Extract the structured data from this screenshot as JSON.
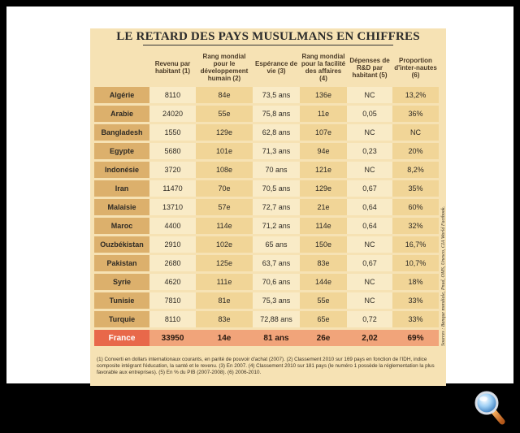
{
  "title": "LE RETARD DES PAYS MUSULMANS EN CHIFFRES",
  "columns": [
    "",
    "Revenu par habitant (1)",
    "Rang mondial pour le développement humain (2)",
    "Espérance de vie (3)",
    "Rang mondial pour la facilité des affaires (4)",
    "Dépenses de R&D par habitant (5)",
    "Proportion d'inter-nautes (6)"
  ],
  "rows": [
    [
      "Algérie",
      "8110",
      "84e",
      "73,5 ans",
      "136e",
      "NC",
      "13,2%"
    ],
    [
      "Arabie",
      "24020",
      "55e",
      "75,8 ans",
      "11e",
      "0,05",
      "36%"
    ],
    [
      "Bangladesh",
      "1550",
      "129e",
      "62,8 ans",
      "107e",
      "NC",
      "NC"
    ],
    [
      "Egypte",
      "5680",
      "101e",
      "71,3 ans",
      "94e",
      "0,23",
      "20%"
    ],
    [
      "Indonésie",
      "3720",
      "108e",
      "70 ans",
      "121e",
      "NC",
      "8,2%"
    ],
    [
      "Iran",
      "11470",
      "70e",
      "70,5 ans",
      "129e",
      "0,67",
      "35%"
    ],
    [
      "Malaisie",
      "13710",
      "57e",
      "72,7 ans",
      "21e",
      "0,64",
      "60%"
    ],
    [
      "Maroc",
      "4400",
      "114e",
      "71,2 ans",
      "114e",
      "0,64",
      "32%"
    ],
    [
      "Ouzbékistan",
      "2910",
      "102e",
      "65 ans",
      "150e",
      "NC",
      "16,7%"
    ],
    [
      "Pakistan",
      "2680",
      "125e",
      "63,7 ans",
      "83e",
      "0,67",
      "10,7%"
    ],
    [
      "Syrie",
      "4620",
      "111e",
      "70,6 ans",
      "144e",
      "NC",
      "18%"
    ],
    [
      "Tunisie",
      "7810",
      "81e",
      "75,3 ans",
      "55e",
      "NC",
      "33%"
    ],
    [
      "Turquie",
      "8110",
      "83e",
      "72,88 ans",
      "65e",
      "0,72",
      "33%"
    ]
  ],
  "france": [
    "France",
    "33950",
    "14e",
    "81 ans",
    "26e",
    "2,02",
    "69%"
  ],
  "notes": "(1) Converti en dollars internationaux courants, en parité de pouvoir d'achat (2007). (2) Classement 2010 sur 169 pays en fonction de l'IDH, indice composite intégrant l'éducation, la santé et le revenu. (3) En 2007. (4) Classement 2010 sur 181 pays (le numéro 1 possède la réglementation la plus favorable aux entreprises). (5) En % du PIB (2007-2008). (6) 2006-2010.",
  "sources": "Sources : Banque mondiale, Pnud, OMS, Unesco, CIA World Factbook.",
  "zoom_icon": "magnifier-icon"
}
